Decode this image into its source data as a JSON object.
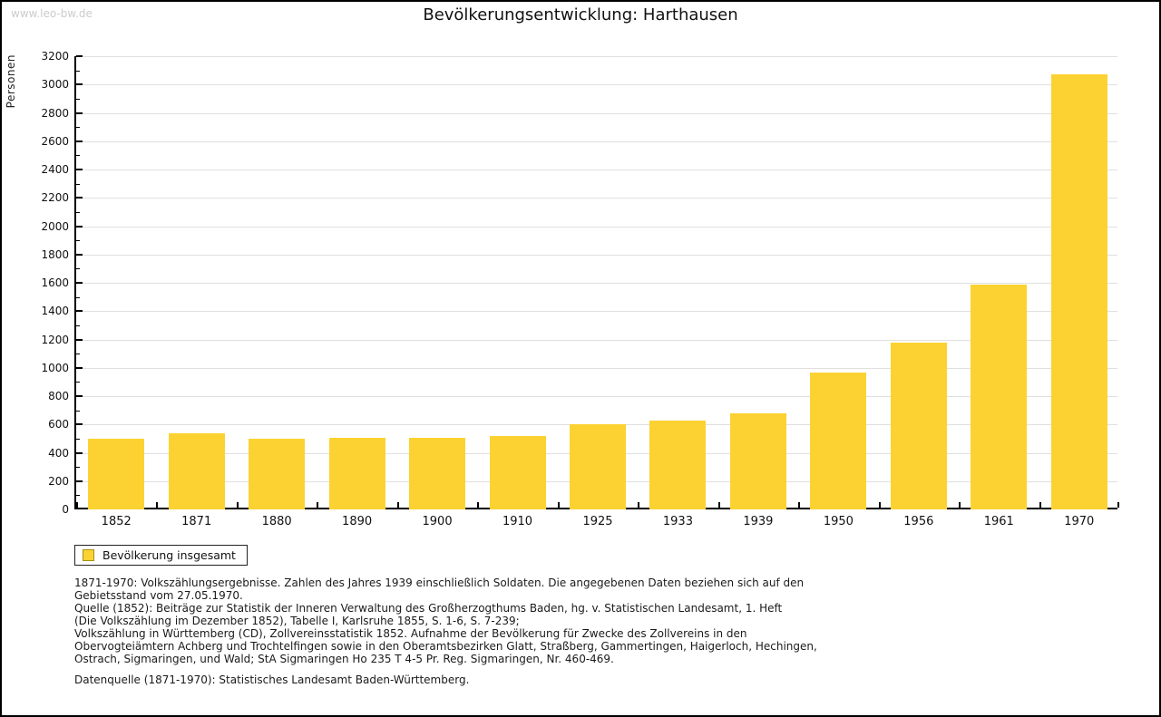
{
  "page": {
    "watermark": "www.leo-bw.de",
    "title": "Bevölkerungsentwicklung: Harthausen"
  },
  "chart_data": {
    "type": "bar",
    "title": "Bevölkerungsentwicklung: Harthausen",
    "ylabel": "Personen",
    "xlabel": "",
    "categories": [
      "1852",
      "1871",
      "1880",
      "1890",
      "1900",
      "1910",
      "1925",
      "1933",
      "1939",
      "1950",
      "1956",
      "1961",
      "1970"
    ],
    "series": [
      {
        "name": "Bevölkerung insgesamt",
        "values": [
          500,
          535,
          500,
          505,
          505,
          520,
          600,
          625,
          680,
          965,
          1180,
          1590,
          3070
        ]
      }
    ],
    "ylim": [
      0,
      3200
    ],
    "ytick_step": 200,
    "yminor_step": 100,
    "yticks": [
      0,
      200,
      400,
      600,
      800,
      1000,
      1200,
      1400,
      1600,
      1800,
      2000,
      2200,
      2400,
      2600,
      2800,
      3000,
      3200
    ],
    "grid": true,
    "legend_position": "bottom-left",
    "bar_color": "#fcd232"
  },
  "legend": {
    "label": "Bevölkerung insgesamt",
    "swatch_color": "#fcd232",
    "swatch_border_color": "#a69110"
  },
  "colors": {
    "bar": "#fcd232",
    "grid": "#e0e0e0",
    "axis": "#000000",
    "watermark": "#cccccc"
  },
  "footnotes": {
    "lines": [
      "1871-1970: Volkszählungsergebnisse. Zahlen des Jahres 1939 einschließlich Soldaten. Die angegebenen Daten beziehen sich auf den",
      "Gebietsstand vom 27.05.1970.",
      "Quelle (1852): Beiträge zur Statistik der Inneren Verwaltung des Großherzogthums Baden, hg. v. Statistischen Landesamt, 1. Heft",
      "(Die Volkszählung im Dezember 1852), Tabelle I, Karlsruhe 1855, S. 1-6, S. 7-239;",
      "Volkszählung in Württemberg (CD), Zollvereinsstatistik 1852. Aufnahme der Bevölkerung für Zwecke des Zollvereins in den",
      "Obervogteiämtern Achberg und Trochtelfingen sowie in den Oberamtsbezirken Glatt, Straßberg, Gammertingen, Haigerloch, Hechingen,",
      "Ostrach, Sigmaringen, und Wald; StA Sigmaringen Ho 235 T 4-5 Pr. Reg. Sigmaringen, Nr. 460-469."
    ],
    "datasource": "Datenquelle (1871-1970): Statistisches Landesamt Baden-Württemberg."
  }
}
